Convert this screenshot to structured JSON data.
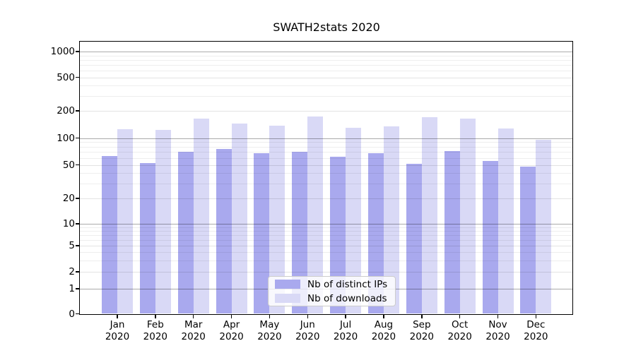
{
  "chart_data": {
    "type": "bar",
    "title": "SWATH2stats 2020",
    "xlabel": "",
    "ylabel": "",
    "yscale": "log-like (symlog: linear segment 0-1, log above)",
    "ylim": [
      0,
      1000
    ],
    "grid": true,
    "categories": [
      "Jan",
      "Feb",
      "Mar",
      "Apr",
      "May",
      "Jun",
      "Jul",
      "Aug",
      "Sep",
      "Oct",
      "Nov",
      "Dec"
    ],
    "category_year": "2020",
    "yticks": [
      0,
      1,
      2,
      5,
      10,
      20,
      50,
      100,
      200,
      500,
      1000
    ],
    "series": [
      {
        "name": "Nb of distinct IPs",
        "color": "#a9a9ee",
        "values": [
          63,
          52,
          70,
          76,
          67,
          70,
          62,
          68,
          51,
          72,
          55,
          48
        ]
      },
      {
        "name": "Nb of downloads",
        "color": "#d9d9f6",
        "values": [
          126,
          122,
          165,
          145,
          137,
          173,
          131,
          135,
          170,
          165,
          128,
          95
        ]
      }
    ],
    "legend": {
      "position": "lower center",
      "entries": [
        "Nb of distinct IPs",
        "Nb of downloads"
      ]
    }
  }
}
